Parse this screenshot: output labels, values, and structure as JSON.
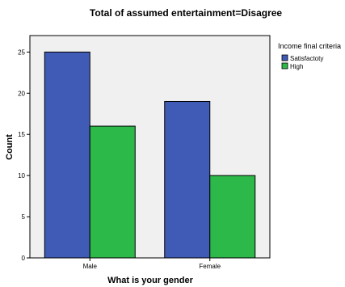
{
  "chart_data": {
    "type": "bar",
    "title": "Total of assumed entertainment=Disagree",
    "xlabel": "What is your gender",
    "ylabel": "Count",
    "categories": [
      "Male",
      "Female"
    ],
    "series": [
      {
        "name": "Satisfactoty",
        "values": [
          25,
          19
        ],
        "color": "#3f5bb5"
      },
      {
        "name": "High",
        "values": [
          16,
          10
        ],
        "color": "#2db84a"
      }
    ],
    "ylim": [
      0,
      27
    ],
    "yticks": [
      0,
      5,
      10,
      15,
      20,
      25
    ],
    "legend": {
      "title": "Income final criteria",
      "placement": "right"
    },
    "plot_background": "#f0f0f0",
    "grid": false
  }
}
